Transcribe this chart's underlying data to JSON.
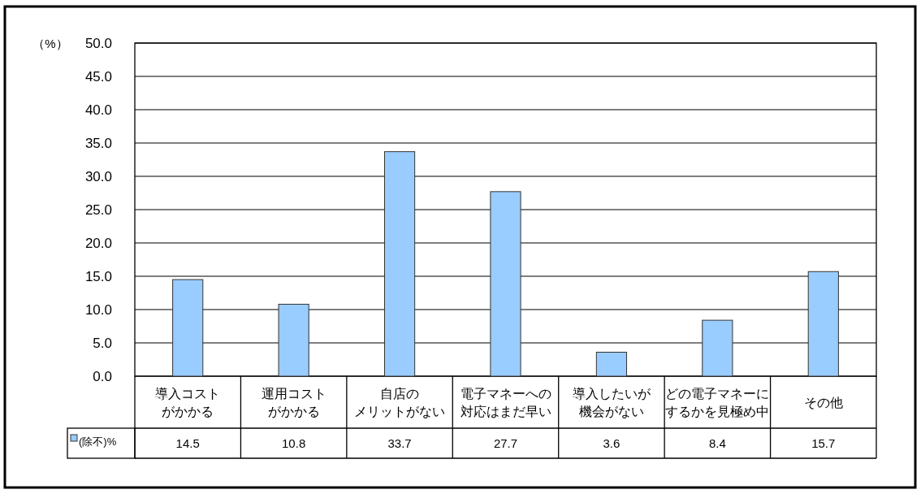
{
  "chart_data": {
    "type": "bar",
    "ylabel": "（%）",
    "categories": [
      "導入コストがかかる",
      "運用コストがかかる",
      "自店のメリットがない",
      "電子マネーへの対応はまだ早い",
      "導入したいが機会がない",
      "どの電子マネーにするかを見極め中",
      "その他"
    ],
    "series": [
      {
        "name": "(除不)%",
        "color": "#99ccff",
        "values": [
          14.5,
          10.8,
          33.7,
          27.7,
          3.6,
          8.4,
          15.7
        ]
      }
    ],
    "ylim": [
      0,
      50
    ],
    "yticks": [
      {
        "value": 0,
        "label": "0.0"
      },
      {
        "value": 5,
        "label": "5.0"
      },
      {
        "value": 10,
        "label": "10.0"
      },
      {
        "value": 15,
        "label": "15.0"
      },
      {
        "value": 20,
        "label": "20.0"
      },
      {
        "value": 25,
        "label": "25.0"
      },
      {
        "value": 30,
        "label": "30.0"
      },
      {
        "value": 35,
        "label": "35.0"
      },
      {
        "value": 40,
        "label": "40.0"
      },
      {
        "value": 45,
        "label": "45.0"
      },
      {
        "value": 50,
        "label": "50.0"
      }
    ],
    "grid": "y",
    "legend": "bottom left",
    "data_labels": true
  }
}
